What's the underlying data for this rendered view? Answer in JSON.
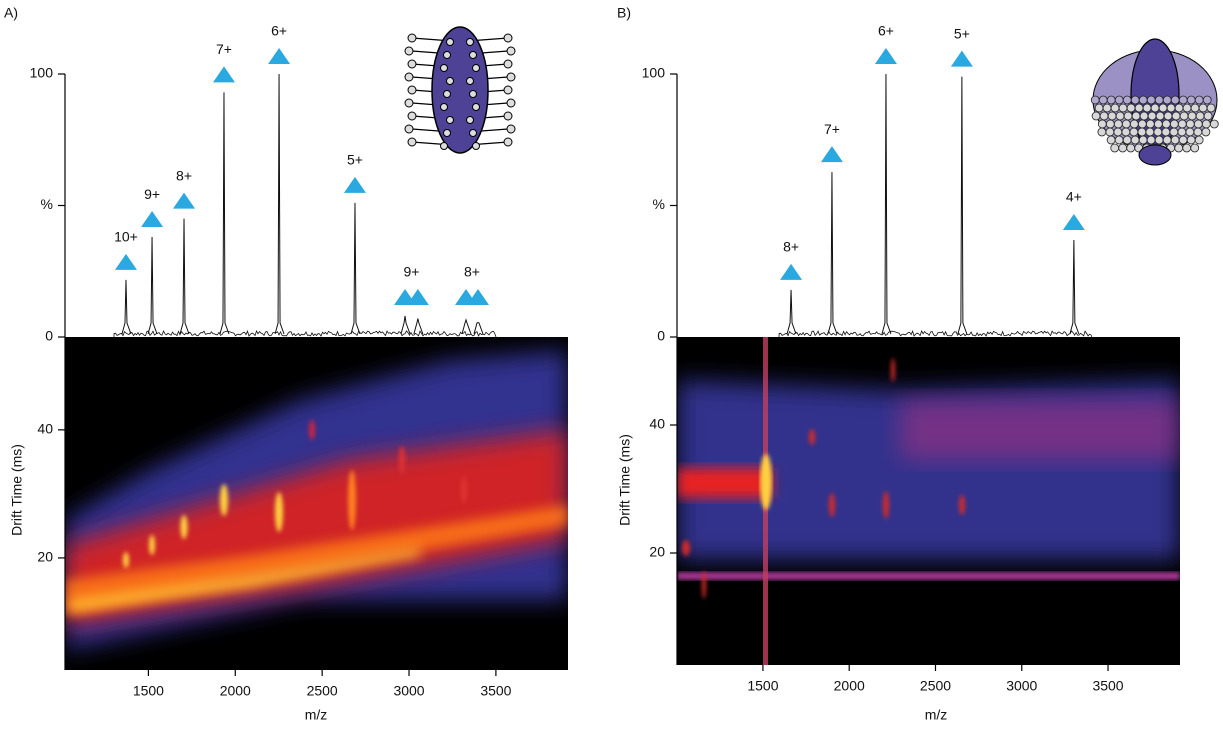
{
  "chart_data": [
    {
      "type": "spectrum",
      "label": "A)",
      "xlabel": "m/z",
      "ylabel": "Drift Time (ms)",
      "xlim": [
        1020,
        3915
      ],
      "xticks": [
        1500,
        2000,
        2500,
        3000,
        3500
      ],
      "ylim": [
        2.5,
        54.5
      ],
      "yticks": [
        20,
        40
      ],
      "spectrum_ylim": [
        0,
        100
      ],
      "spectrum_yticks": [
        0,
        {
          "value": 50,
          "label": "%"
        },
        100
      ],
      "marker_color": "#29a9e0",
      "series": [
        {
          "name": "10+",
          "mz": [
            1371
          ],
          "intensity": [
            21.7
          ]
        },
        {
          "name": "9+",
          "mz": [
            1521
          ],
          "intensity": [
            38
          ]
        },
        {
          "name": "8+",
          "mz": [
            1705
          ],
          "intensity": [
            45
          ]
        },
        {
          "name": "7+",
          "mz": [
            1935
          ],
          "intensity": [
            93
          ]
        },
        {
          "name": "6+",
          "mz": [
            2252
          ],
          "intensity": [
            100
          ]
        },
        {
          "name": "5+",
          "mz": [
            2689
          ],
          "intensity": [
            51
          ]
        },
        {
          "name": "9+",
          "mz": [
            2977,
            3051
          ],
          "intensity": [
            8,
            7
          ]
        },
        {
          "name": "8+",
          "mz": [
            3328,
            3397
          ],
          "intensity": [
            6.5,
            5.5
          ]
        }
      ]
    },
    {
      "type": "spectrum",
      "label": "B)",
      "xlabel": "m/z",
      "ylabel": "Drift Time (ms)",
      "xlim": [
        1002,
        3917
      ],
      "xticks": [
        1500,
        2000,
        2500,
        3000,
        3500
      ],
      "ylim": [
        2.5,
        53.75
      ],
      "yticks": [
        20,
        40
      ],
      "spectrum_ylim": [
        0,
        100
      ],
      "spectrum_yticks": [
        0,
        {
          "value": 50,
          "label": "%"
        },
        100
      ],
      "marker_color": "#29a9e0",
      "series": [
        {
          "name": "8+",
          "mz": [
            1663
          ],
          "intensity": [
            17.9
          ]
        },
        {
          "name": "7+",
          "mz": [
            1900
          ],
          "intensity": [
            62.7
          ]
        },
        {
          "name": "6+",
          "mz": [
            2213
          ],
          "intensity": [
            100
          ]
        },
        {
          "name": "5+",
          "mz": [
            2653
          ],
          "intensity": [
            99
          ]
        },
        {
          "name": "4+",
          "mz": [
            3302
          ],
          "intensity": [
            36.9
          ]
        }
      ]
    }
  ]
}
